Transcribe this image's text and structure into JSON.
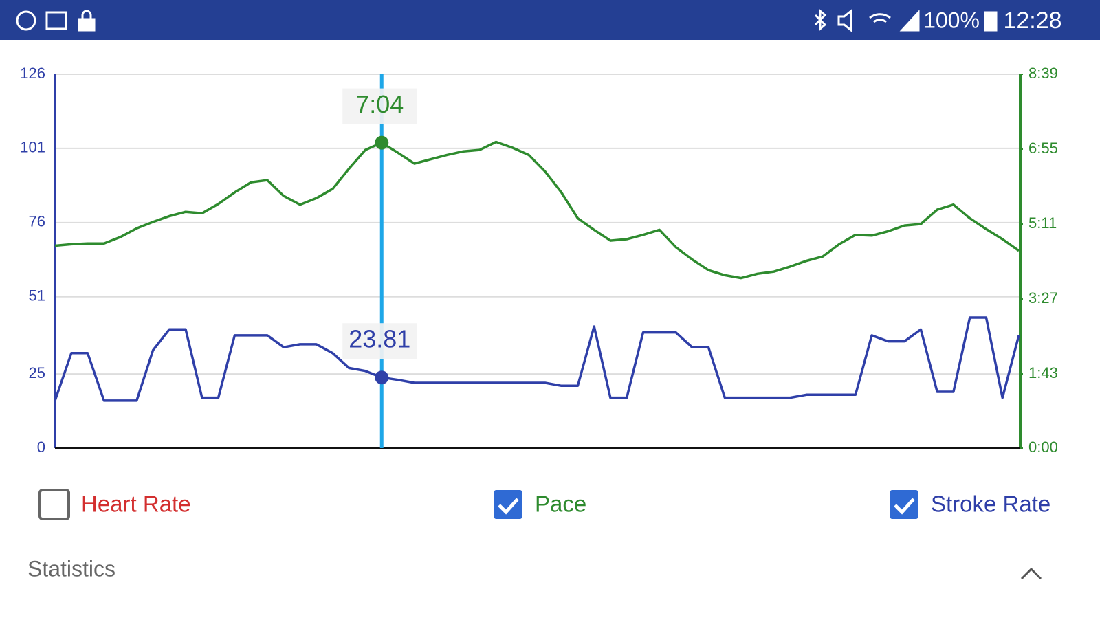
{
  "status_bar": {
    "battery": "100%",
    "time": "12:28"
  },
  "chart_data": {
    "type": "line",
    "ylim": [
      0,
      126
    ],
    "yticks": [
      0,
      25,
      51,
      76,
      101,
      126
    ],
    "y2lim": [
      0,
      519
    ],
    "y2ticks": [
      {
        "value": 0,
        "label": "0:00"
      },
      {
        "value": 103,
        "label": "1:43"
      },
      {
        "value": 207,
        "label": "3:27"
      },
      {
        "value": 311,
        "label": "5:11"
      },
      {
        "value": 415,
        "label": "6:55"
      },
      {
        "value": 519,
        "label": "8:39"
      }
    ],
    "grid": true,
    "series": [
      {
        "name": "Pace",
        "color": "#2e8b2e",
        "axis": "y2",
        "checked": true,
        "values": [
          281,
          283,
          284,
          284,
          293,
          305,
          314,
          322,
          328,
          326,
          339,
          355,
          369,
          372,
          350,
          338,
          347,
          360,
          388,
          414,
          424,
          410,
          395,
          401,
          407,
          412,
          414,
          425,
          417,
          407,
          384,
          355,
          319,
          303,
          288,
          290,
          296,
          303,
          279,
          262,
          247,
          240,
          236,
          242,
          245,
          252,
          260,
          266,
          283,
          296,
          295,
          301,
          309,
          311,
          331,
          338,
          319,
          304,
          290,
          274
        ]
      },
      {
        "name": "Stroke Rate",
        "color": "#2f3fa8",
        "checked": true,
        "values": [
          16,
          32,
          32,
          16,
          16,
          16,
          33,
          40,
          40,
          17,
          17,
          38,
          38,
          38,
          34,
          35,
          35,
          32,
          27,
          26,
          23.81,
          23,
          22,
          22,
          22,
          22,
          22,
          22,
          22,
          22,
          22,
          21,
          21,
          41,
          17,
          17,
          39,
          39,
          39,
          34,
          34,
          17,
          17,
          17,
          17,
          17,
          18,
          18,
          18,
          18,
          38,
          36,
          36,
          40,
          19,
          19,
          44,
          44,
          17,
          38
        ]
      }
    ],
    "hidden_series": [
      {
        "name": "Heart Rate",
        "color": "#d32f2f",
        "checked": false
      }
    ],
    "annotations": [
      {
        "label": "7:04",
        "value": 424,
        "axis": "y2",
        "color": "#2e8b2e"
      },
      {
        "label": "23.81",
        "value": 23.81,
        "color": "#2f3fa8"
      }
    ]
  },
  "section": {
    "title": "Statistics"
  }
}
